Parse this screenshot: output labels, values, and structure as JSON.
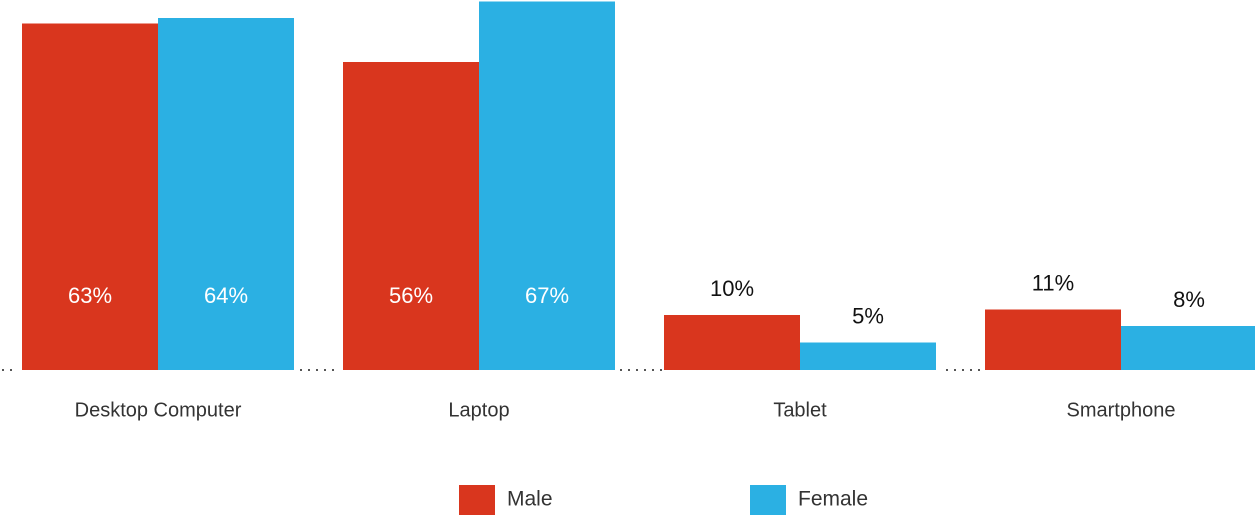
{
  "chart_data": {
    "type": "bar",
    "categories": [
      "Desktop Computer",
      "Laptop",
      "Tablet",
      "Smartphone"
    ],
    "series": [
      {
        "name": "Male",
        "color": "#d9361e",
        "values": [
          63,
          56,
          10,
          11
        ],
        "value_labels": [
          "63%",
          "56%",
          "10%",
          "11%"
        ]
      },
      {
        "name": "Female",
        "color": "#2bb0e3",
        "values": [
          64,
          67,
          5,
          8
        ],
        "value_labels": [
          "64%",
          "67%",
          "5%",
          "8%"
        ]
      }
    ],
    "legend": "bottom"
  }
}
